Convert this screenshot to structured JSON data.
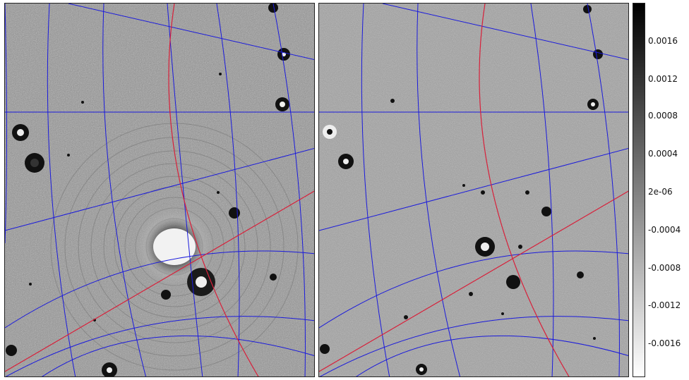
{
  "figure": {
    "panels": [
      {
        "id": "left",
        "description_tag": "radio-image-left"
      },
      {
        "id": "right",
        "description_tag": "radio-image-right"
      }
    ],
    "colorbar": {
      "gradient": [
        "#000000",
        "#ffffff"
      ],
      "ticks": [
        "0.0016",
        "0.0012",
        "0.0008",
        "0.0004",
        "2e-06",
        "-0.0004",
        "-0.0008",
        "-0.0012",
        "-0.0016"
      ]
    },
    "colors": {
      "grid": "#1a1adc",
      "meridian": "#d8203a",
      "background": "#8a8a8a"
    }
  }
}
